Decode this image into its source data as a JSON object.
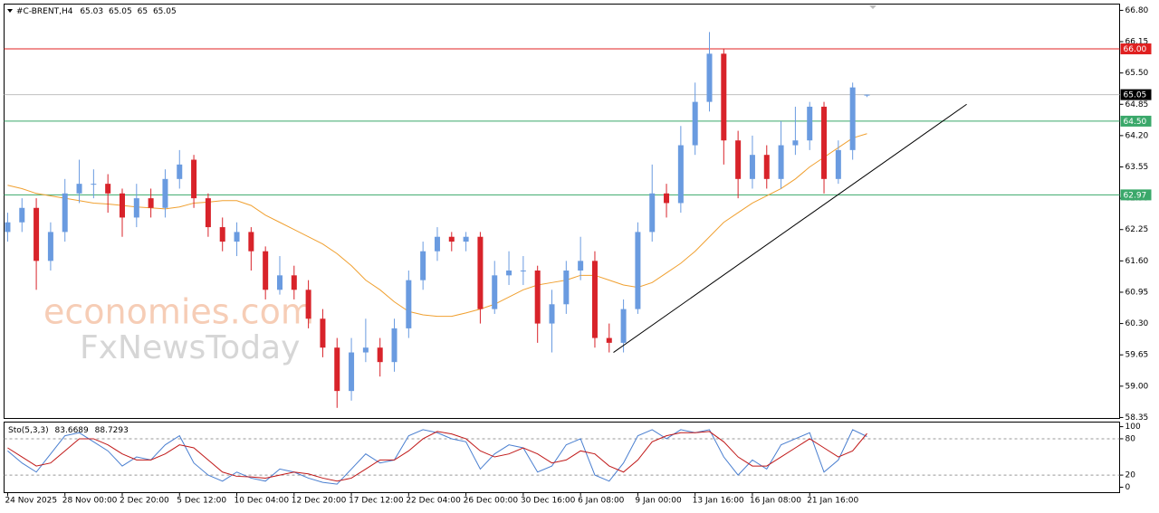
{
  "watermark": [
    "economies.com",
    "FxNewsToday"
  ],
  "chart_data": [
    {
      "type": "candlestick",
      "title": "#C-BRENT,H4",
      "open": [
        62.2,
        62.4,
        62.7,
        61.6,
        62.2,
        63.0,
        63.2,
        63.2,
        63.0,
        62.5,
        62.9,
        62.7,
        63.3,
        63.7,
        62.9,
        62.3,
        62.0,
        62.2,
        61.8,
        61.0,
        61.3,
        61.0,
        60.4,
        59.8,
        58.9,
        59.7,
        59.8,
        59.5,
        60.2,
        61.2,
        61.8,
        62.1,
        62.0,
        62.1,
        60.6,
        61.3,
        61.4,
        61.4,
        60.3,
        60.7,
        61.4,
        61.6,
        60.0,
        59.9,
        60.6,
        62.2,
        63.0,
        62.8,
        64.0,
        64.9,
        65.9,
        64.1,
        63.3,
        63.8,
        63.3,
        64.0,
        64.1,
        64.8,
        63.3,
        63.9,
        65.03
      ],
      "high": [
        62.6,
        62.9,
        62.9,
        62.4,
        63.3,
        63.7,
        63.5,
        63.4,
        63.1,
        63.2,
        63.1,
        63.5,
        63.9,
        63.8,
        63.0,
        62.5,
        62.4,
        62.3,
        61.9,
        61.7,
        61.5,
        61.2,
        60.6,
        60.0,
        60.0,
        60.4,
        60.0,
        60.4,
        61.4,
        62.0,
        62.3,
        62.2,
        62.2,
        62.2,
        61.6,
        61.8,
        61.7,
        61.5,
        61.0,
        61.6,
        62.1,
        61.8,
        60.3,
        60.8,
        62.4,
        63.6,
        63.2,
        64.4,
        65.3,
        66.35,
        66.0,
        64.3,
        64.2,
        64.0,
        64.5,
        64.8,
        64.9,
        64.9,
        64.1,
        65.3,
        65.05
      ],
      "low": [
        62.0,
        62.2,
        61.0,
        61.4,
        62.0,
        62.8,
        62.9,
        62.6,
        62.1,
        62.3,
        62.5,
        62.5,
        63.1,
        62.7,
        62.1,
        61.8,
        61.7,
        61.4,
        60.8,
        60.9,
        60.8,
        60.2,
        59.6,
        58.55,
        58.7,
        59.5,
        59.2,
        59.3,
        60.0,
        61.0,
        61.6,
        61.8,
        61.8,
        60.3,
        60.5,
        61.1,
        61.1,
        59.9,
        59.7,
        60.5,
        61.2,
        59.8,
        59.7,
        59.7,
        60.5,
        62.0,
        62.5,
        62.6,
        63.8,
        64.7,
        63.6,
        62.9,
        63.1,
        63.1,
        63.1,
        63.8,
        63.9,
        63.0,
        63.2,
        63.7,
        65.0
      ],
      "close": [
        62.4,
        62.7,
        61.6,
        62.2,
        63.0,
        63.2,
        63.2,
        63.0,
        62.5,
        62.9,
        62.7,
        63.3,
        63.6,
        62.9,
        62.3,
        62.0,
        62.2,
        61.8,
        61.0,
        61.3,
        61.0,
        60.4,
        59.8,
        58.9,
        59.7,
        59.8,
        59.5,
        60.2,
        61.2,
        61.8,
        62.1,
        62.0,
        62.1,
        60.6,
        61.3,
        61.4,
        61.4,
        60.3,
        60.7,
        61.4,
        61.6,
        60.0,
        59.9,
        60.6,
        62.2,
        63.0,
        62.8,
        64.0,
        64.9,
        65.9,
        64.1,
        63.3,
        63.8,
        63.3,
        64.0,
        64.1,
        64.8,
        63.3,
        63.9,
        65.2,
        65.05
      ],
      "up_color": "#6a9be0",
      "down_color": "#d8232a",
      "moving_average": {
        "color": "#f0a030",
        "values": [
          63.17,
          63.1,
          63.0,
          62.95,
          62.9,
          62.85,
          62.8,
          62.78,
          62.75,
          62.72,
          62.7,
          62.68,
          62.72,
          62.8,
          62.82,
          62.85,
          62.85,
          62.75,
          62.55,
          62.4,
          62.25,
          62.1,
          61.95,
          61.75,
          61.5,
          61.2,
          61.0,
          60.75,
          60.55,
          60.48,
          60.45,
          60.45,
          60.52,
          60.6,
          60.7,
          60.85,
          61.0,
          61.1,
          61.15,
          61.2,
          61.3,
          61.3,
          61.2,
          61.1,
          61.05,
          61.15,
          61.35,
          61.55,
          61.8,
          62.1,
          62.4,
          62.6,
          62.8,
          62.95,
          63.1,
          63.3,
          63.55,
          63.75,
          63.95,
          64.15,
          64.24
        ]
      },
      "levels": [
        {
          "value": 66.0,
          "label": "66.00",
          "color": "#e02020"
        },
        {
          "value": 65.05,
          "label": "65.05",
          "color": "#000000",
          "line_color": "#c0c0c0"
        },
        {
          "value": 64.5,
          "label": "64.50",
          "color": "#3aa86a"
        },
        {
          "value": 62.97,
          "label": "62.97",
          "color": "#3aa86a"
        }
      ],
      "trendline": {
        "x": [
          42.3,
          66.96
        ],
        "y": [
          59.7,
          64.85
        ],
        "color": "#000000"
      },
      "xlim": [
        -0.25,
        77.64
      ],
      "ylim": [
        58.33,
        66.93
      ],
      "yticks": [
        {
          "value": 66.8,
          "label": "66.80"
        },
        {
          "value": 66.15,
          "label": "66.15"
        },
        {
          "value": 65.5,
          "label": "65.50"
        },
        {
          "value": 64.85,
          "label": "64.85"
        },
        {
          "value": 64.2,
          "label": "64.20"
        },
        {
          "value": 63.55,
          "label": "63.55"
        },
        {
          "value": 62.9,
          "label": "62.90"
        },
        {
          "value": 62.25,
          "label": "62.25"
        },
        {
          "value": 61.6,
          "label": "61.60"
        },
        {
          "value": 60.95,
          "label": "60.95"
        },
        {
          "value": 60.3,
          "label": "60.30"
        },
        {
          "value": 59.65,
          "label": "59.65"
        },
        {
          "value": 59.0,
          "label": "59.00"
        },
        {
          "value": 58.35,
          "label": "58.35"
        }
      ],
      "xticks": [
        {
          "value": 0,
          "label": "24 Nov 2025"
        },
        {
          "value": 4,
          "label": "28 Nov 00:00"
        },
        {
          "value": 8,
          "label": "2 Dec 20:00"
        },
        {
          "value": 12,
          "label": "5 Dec 12:00"
        },
        {
          "value": 16,
          "label": "10 Dec 04:00"
        },
        {
          "value": 20,
          "label": "12 Dec 20:00"
        },
        {
          "value": 24,
          "label": "17 Dec 12:00"
        },
        {
          "value": 28,
          "label": "22 Dec 04:00"
        },
        {
          "value": 32,
          "label": "26 Dec 00:00"
        },
        {
          "value": 36,
          "label": "30 Dec 16:00"
        },
        {
          "value": 40,
          "label": "6 Jan 08:00"
        },
        {
          "value": 44,
          "label": "9 Jan 00:00"
        },
        {
          "value": 48,
          "label": "13 Jan 16:00"
        },
        {
          "value": 52,
          "label": "16 Jan 08:00"
        },
        {
          "value": 56,
          "label": "21 Jan 16:00"
        }
      ]
    },
    {
      "type": "line",
      "title": "Sto(5,3,3)",
      "series": [
        {
          "color": "#4a7fd0",
          "values": [
            60,
            40,
            25,
            55,
            85,
            90,
            75,
            60,
            35,
            50,
            45,
            70,
            85,
            40,
            20,
            10,
            25,
            15,
            10,
            30,
            25,
            15,
            8,
            5,
            30,
            55,
            40,
            45,
            85,
            95,
            90,
            80,
            75,
            30,
            55,
            70,
            65,
            25,
            35,
            70,
            80,
            20,
            10,
            40,
            85,
            95,
            80,
            95,
            90,
            95,
            50,
            20,
            45,
            30,
            70,
            80,
            90,
            25,
            45,
            95,
            83.6689
          ]
        },
        {
          "color": "#c01818",
          "values": [
            65,
            50,
            35,
            40,
            60,
            80,
            80,
            70,
            55,
            45,
            45,
            55,
            70,
            65,
            45,
            25,
            18,
            17,
            15,
            20,
            25,
            22,
            15,
            10,
            15,
            30,
            45,
            45,
            60,
            80,
            92,
            88,
            80,
            60,
            50,
            55,
            65,
            55,
            40,
            45,
            60,
            55,
            35,
            25,
            45,
            75,
            85,
            90,
            90,
            92,
            75,
            50,
            35,
            35,
            50,
            65,
            80,
            65,
            50,
            60,
            88.7293
          ]
        }
      ],
      "levels": [
        80,
        20
      ],
      "xlim": [
        -0.25,
        77.64
      ],
      "ylim": [
        -9,
        107.6
      ],
      "yticks": [
        0,
        20,
        80,
        100
      ]
    }
  ]
}
